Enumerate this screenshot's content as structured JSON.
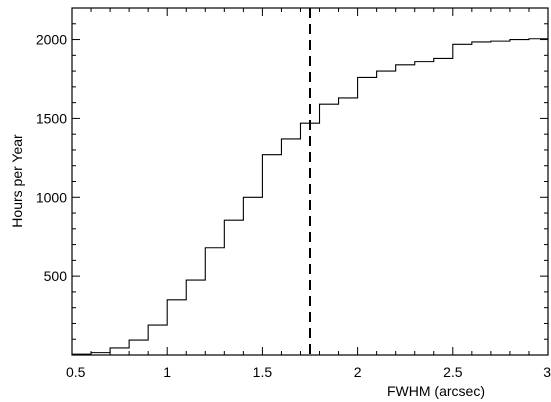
{
  "chart_data": {
    "type": "line",
    "style": "cumulative step histogram",
    "xlabel": "FWHM (arcsec)",
    "ylabel": "Hours per Year",
    "xlim": [
      0.5,
      3.0
    ],
    "ylim": [
      0,
      2200
    ],
    "x_ticks": [
      0.5,
      1,
      1.5,
      2,
      2.5,
      3
    ],
    "x_tick_labels": [
      "0.5",
      "1",
      "1.5",
      "2",
      "2.5",
      "3"
    ],
    "y_ticks": [
      500,
      1000,
      1500,
      2000
    ],
    "y_tick_labels": [
      "500",
      "1000",
      "1500",
      "2000"
    ],
    "bin_edges": [
      0.5,
      0.6,
      0.7,
      0.8,
      0.9,
      1.0,
      1.1,
      1.2,
      1.3,
      1.4,
      1.5,
      1.6,
      1.7,
      1.8,
      1.9,
      2.0,
      2.1,
      2.2,
      2.3,
      2.4,
      2.5,
      2.6,
      2.7,
      2.8,
      2.9,
      3.0
    ],
    "values": [
      5,
      15,
      45,
      95,
      190,
      350,
      475,
      680,
      855,
      1000,
      1270,
      1370,
      1470,
      1590,
      1630,
      1760,
      1800,
      1840,
      1860,
      1880,
      1970,
      1985,
      1990,
      2000,
      2005
    ],
    "vline": {
      "x": 1.75,
      "style": "dashed"
    },
    "grid": false,
    "legend": "none"
  }
}
